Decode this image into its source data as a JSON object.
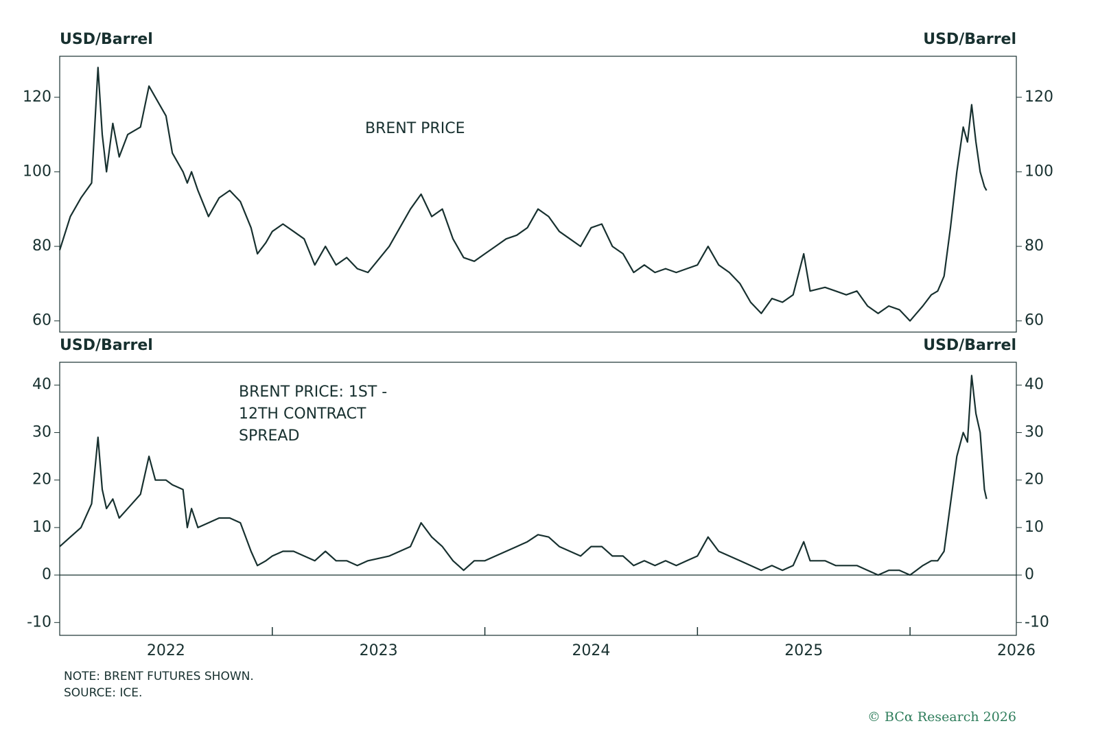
{
  "footer": "© BCα Research 2026",
  "chart_data": [
    {
      "type": "line",
      "ylabel": "USD/Barrel",
      "y2label": "USD/Barrel",
      "annotation": [
        "BRENT PRICE"
      ],
      "xlim": [
        2022.0,
        2026.5
      ],
      "ylim": [
        57,
        131
      ],
      "yticks": [
        60,
        80,
        100,
        120
      ],
      "x": [
        2022.0,
        2022.05,
        2022.1,
        2022.15,
        2022.18,
        2022.2,
        2022.22,
        2022.25,
        2022.28,
        2022.32,
        2022.38,
        2022.42,
        2022.45,
        2022.5,
        2022.53,
        2022.58,
        2022.6,
        2022.62,
        2022.65,
        2022.7,
        2022.75,
        2022.8,
        2022.85,
        2022.9,
        2022.93,
        2022.97,
        2023.0,
        2023.05,
        2023.1,
        2023.15,
        2023.2,
        2023.25,
        2023.3,
        2023.35,
        2023.4,
        2023.45,
        2023.55,
        2023.6,
        2023.65,
        2023.7,
        2023.75,
        2023.8,
        2023.85,
        2023.9,
        2023.95,
        2024.0,
        2024.05,
        2024.1,
        2024.15,
        2024.2,
        2024.25,
        2024.3,
        2024.35,
        2024.4,
        2024.45,
        2024.5,
        2024.55,
        2024.6,
        2024.65,
        2024.7,
        2024.75,
        2024.8,
        2024.85,
        2024.9,
        2024.95,
        2025.0,
        2025.05,
        2025.1,
        2025.15,
        2025.2,
        2025.25,
        2025.3,
        2025.35,
        2025.4,
        2025.45,
        2025.5,
        2025.53,
        2025.6,
        2025.65,
        2025.7,
        2025.75,
        2025.8,
        2025.85,
        2025.9,
        2025.95,
        2026.0,
        2026.03,
        2026.06,
        2026.1,
        2026.13,
        2026.16,
        2026.19,
        2026.22,
        2026.25,
        2026.27,
        2026.29,
        2026.31,
        2026.33,
        2026.35,
        2026.36
      ],
      "series": [
        {
          "color": "#17302f",
          "values": [
            79,
            88,
            93,
            97,
            128,
            110,
            100,
            113,
            104,
            110,
            112,
            123,
            120,
            115,
            105,
            100,
            97,
            100,
            95,
            88,
            93,
            95,
            92,
            85,
            78,
            81,
            84,
            86,
            84,
            82,
            75,
            80,
            75,
            77,
            74,
            73,
            80,
            85,
            90,
            94,
            88,
            90,
            82,
            77,
            76,
            78,
            80,
            82,
            83,
            85,
            90,
            88,
            84,
            82,
            80,
            85,
            86,
            80,
            78,
            73,
            75,
            73,
            74,
            73,
            74,
            75,
            80,
            75,
            73,
            70,
            65,
            62,
            66,
            65,
            67,
            78,
            68,
            69,
            68,
            67,
            68,
            64,
            62,
            64,
            63,
            60,
            62,
            64,
            67,
            68,
            72,
            85,
            100,
            112,
            108,
            118,
            108,
            100,
            96,
            95
          ]
        }
      ]
    },
    {
      "type": "line",
      "ylabel": "USD/Barrel",
      "y2label": "USD/Barrel",
      "annotation": [
        "BRENT PRICE: 1ST -",
        "12TH CONTRACT",
        "SPREAD"
      ],
      "xlim": [
        2022.0,
        2026.5
      ],
      "ylim": [
        -12.7,
        44.8
      ],
      "yticks": [
        -10,
        0,
        10,
        20,
        30,
        40
      ],
      "zero_line": true,
      "xticks": [
        {
          "value": 2022.5,
          "label": "2022"
        },
        {
          "value": 2023.5,
          "label": "2023"
        },
        {
          "value": 2024.5,
          "label": "2024"
        },
        {
          "value": 2025.5,
          "label": "2025"
        },
        {
          "value": 2026.5,
          "label": "2026"
        }
      ],
      "note": "NOTE: BRENT FUTURES SHOWN.",
      "source": "SOURCE: ICE.",
      "x": [
        2022.0,
        2022.05,
        2022.1,
        2022.15,
        2022.18,
        2022.2,
        2022.22,
        2022.25,
        2022.28,
        2022.32,
        2022.38,
        2022.42,
        2022.45,
        2022.5,
        2022.53,
        2022.58,
        2022.6,
        2022.62,
        2022.65,
        2022.7,
        2022.75,
        2022.8,
        2022.85,
        2022.9,
        2022.93,
        2022.97,
        2023.0,
        2023.05,
        2023.1,
        2023.15,
        2023.2,
        2023.25,
        2023.3,
        2023.35,
        2023.4,
        2023.45,
        2023.55,
        2023.6,
        2023.65,
        2023.7,
        2023.75,
        2023.8,
        2023.85,
        2023.9,
        2023.95,
        2024.0,
        2024.05,
        2024.1,
        2024.15,
        2024.2,
        2024.25,
        2024.3,
        2024.35,
        2024.4,
        2024.45,
        2024.5,
        2024.55,
        2024.6,
        2024.65,
        2024.7,
        2024.75,
        2024.8,
        2024.85,
        2024.9,
        2024.95,
        2025.0,
        2025.05,
        2025.1,
        2025.15,
        2025.2,
        2025.25,
        2025.3,
        2025.35,
        2025.4,
        2025.45,
        2025.5,
        2025.53,
        2025.6,
        2025.65,
        2025.7,
        2025.75,
        2025.8,
        2025.85,
        2025.9,
        2025.95,
        2026.0,
        2026.03,
        2026.06,
        2026.1,
        2026.13,
        2026.16,
        2026.19,
        2026.22,
        2026.25,
        2026.27,
        2026.29,
        2026.31,
        2026.33,
        2026.35,
        2026.36
      ],
      "series": [
        {
          "color": "#17302f",
          "values": [
            6,
            8,
            10,
            15,
            29,
            18,
            14,
            16,
            12,
            14,
            17,
            25,
            20,
            20,
            19,
            18,
            10,
            14,
            10,
            11,
            12,
            12,
            11,
            5,
            2,
            3,
            4,
            5,
            5,
            4,
            3,
            5,
            3,
            3,
            2,
            3,
            4,
            5,
            6,
            11,
            8,
            6,
            3,
            1,
            3,
            3,
            4,
            5,
            6,
            7,
            8.5,
            8,
            6,
            5,
            4,
            6,
            6,
            4,
            4,
            2,
            3,
            2,
            3,
            2,
            3,
            4,
            8,
            5,
            4,
            3,
            2,
            1,
            2,
            1,
            2,
            7,
            3,
            3,
            2,
            2,
            2,
            1,
            0,
            1,
            1,
            0,
            1,
            2,
            3,
            3,
            5,
            15,
            25,
            30,
            28,
            42,
            34,
            30,
            18,
            16
          ]
        }
      ]
    }
  ]
}
